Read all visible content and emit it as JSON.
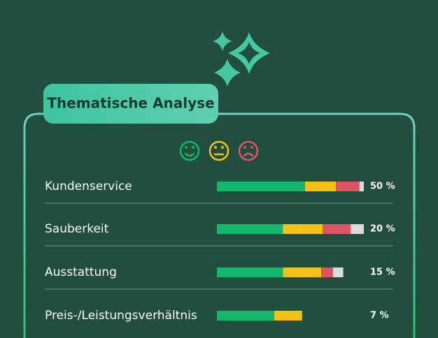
{
  "chart_data": {
    "type": "stacked-bar",
    "title": "Thematische Analyse",
    "categories": [
      "Kundenservice",
      "Sauberkeit",
      "Ausstattung",
      "Preis-/Leistungsverhältnis"
    ],
    "series": [
      {
        "color": "#12b76a",
        "values": [
          60,
          45,
          45,
          39
        ]
      },
      {
        "color": "#f6c015",
        "values": [
          21,
          27,
          26,
          19
        ]
      },
      {
        "color": "#e05362",
        "values": [
          16,
          19,
          8,
          0
        ]
      },
      {
        "color": "#d9dcdb",
        "values": [
          3,
          9,
          7,
          0
        ]
      }
    ],
    "xlim": [
      0,
      100
    ],
    "shares": [
      50,
      20,
      15,
      7
    ],
    "share_labels": [
      "50 %",
      "20 %",
      "15 %",
      "7 %"
    ]
  }
}
